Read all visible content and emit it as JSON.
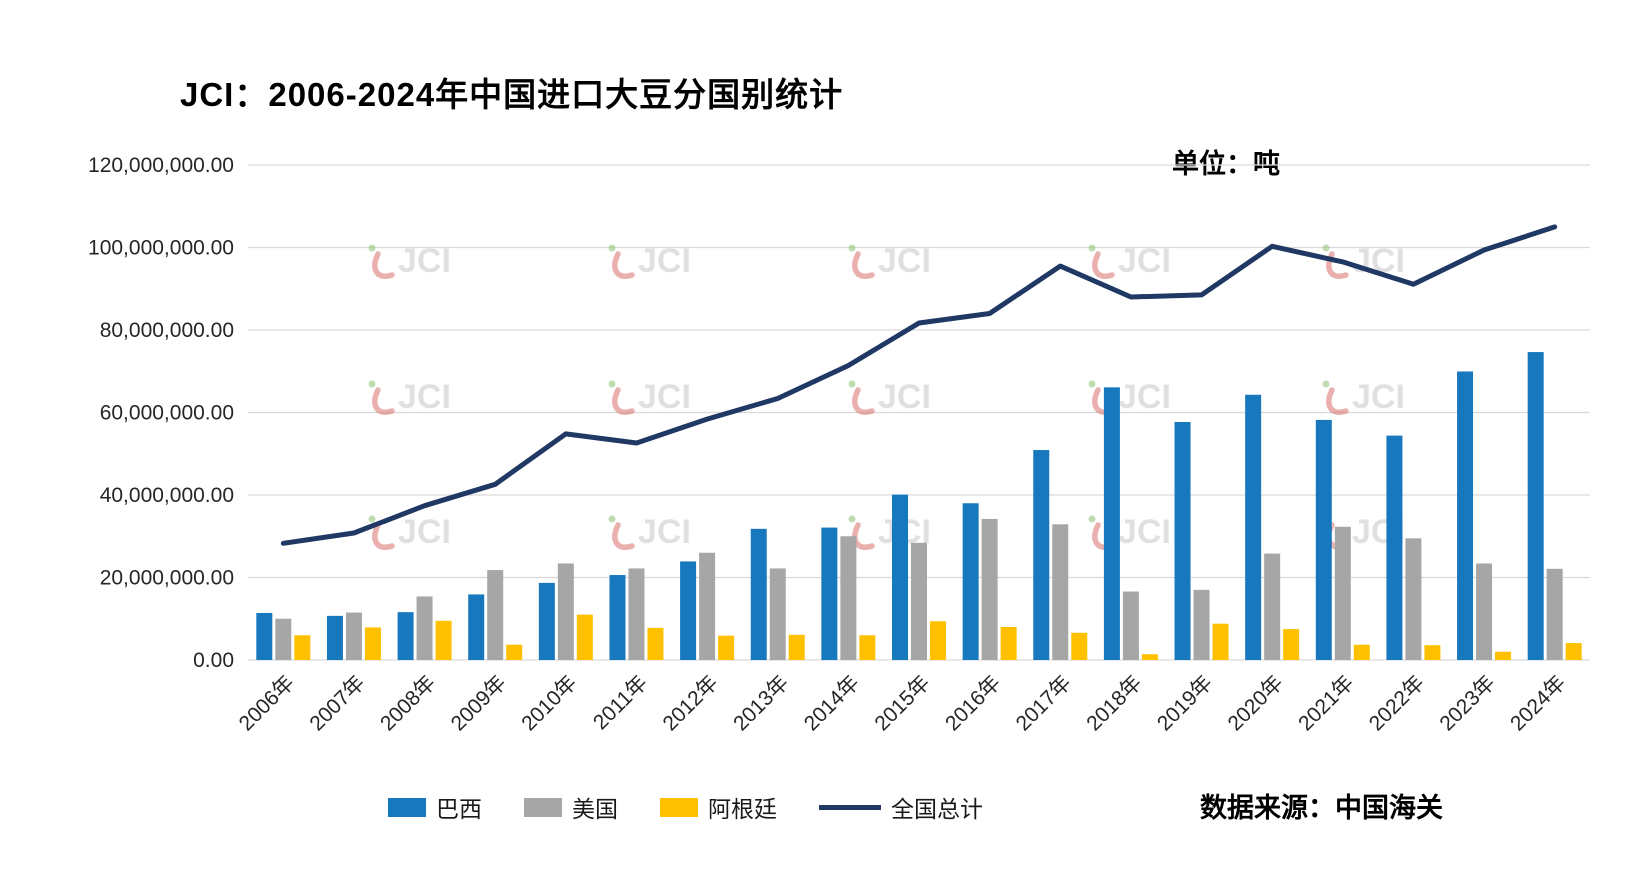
{
  "title": "JCI：2006-2024年中国进口大豆分国别统计",
  "unit_label": "单位：吨",
  "source_label": "数据来源：中国海关",
  "watermark_text": "JCI",
  "colors": {
    "brazil": "#1878BE",
    "usa": "#A6A6A6",
    "argentina": "#FFC000",
    "total_line": "#1F3864",
    "gridline": "#D9D9D9",
    "axis_text": "#262626"
  },
  "legend": [
    {
      "label": "巴西",
      "color": "#1878BE",
      "type": "bar"
    },
    {
      "label": "美国",
      "color": "#A6A6A6",
      "type": "bar"
    },
    {
      "label": "阿根廷",
      "color": "#FFC000",
      "type": "bar"
    },
    {
      "label": "全国总计",
      "color": "#1F3864",
      "type": "line"
    }
  ],
  "chart_data": {
    "type": "bar",
    "subtype": "grouped-bars-with-line-overlay",
    "title": "JCI：2006-2024年中国进口大豆分国别统计",
    "xlabel": "",
    "ylabel": "",
    "unit": "吨",
    "ylim": [
      0,
      120000000
    ],
    "ytick_step": 20000000,
    "ytick_labels": [
      "0.00",
      "20,000,000.00",
      "40,000,000.00",
      "60,000,000.00",
      "80,000,000.00",
      "100,000,000.00",
      "120,000,000.00"
    ],
    "grid": true,
    "legend_position": "bottom",
    "categories": [
      "2006年",
      "2007年",
      "2008年",
      "2009年",
      "2010年",
      "2011年",
      "2012年",
      "2013年",
      "2014年",
      "2015年",
      "2016年",
      "2017年",
      "2018年",
      "2019年",
      "2020年",
      "2021年",
      "2022年",
      "2023年",
      "2024年"
    ],
    "series": [
      {
        "name": "巴西",
        "type": "bar",
        "color": "#1878BE",
        "values": [
          11400000,
          10700000,
          11600000,
          15900000,
          18700000,
          20600000,
          23900000,
          31800000,
          32100000,
          40100000,
          38000000,
          50900000,
          66100000,
          57700000,
          64300000,
          58200000,
          54400000,
          69950000,
          74650000
        ]
      },
      {
        "name": "美国",
        "type": "bar",
        "color": "#A6A6A6",
        "values": [
          10000000,
          11500000,
          15400000,
          21800000,
          23400000,
          22200000,
          26000000,
          22200000,
          30000000,
          28400000,
          34200000,
          32900000,
          16600000,
          17000000,
          25800000,
          32300000,
          29500000,
          23400000,
          22100000
        ]
      },
      {
        "name": "阿根廷",
        "type": "bar",
        "color": "#FFC000",
        "values": [
          6000000,
          7900000,
          9500000,
          3700000,
          11000000,
          7800000,
          5900000,
          6100000,
          6000000,
          9400000,
          8000000,
          6600000,
          1400000,
          8800000,
          7500000,
          3700000,
          3600000,
          2000000,
          4100000
        ]
      },
      {
        "name": "全国总计",
        "type": "line",
        "color": "#1F3864",
        "values": [
          28300000,
          30800000,
          37400000,
          42600000,
          54800000,
          52600000,
          58400000,
          63400000,
          71400000,
          81700000,
          84000000,
          95500000,
          88000000,
          88500000,
          100300000,
          96500000,
          91100000,
          99400000,
          105000000
        ]
      }
    ]
  }
}
